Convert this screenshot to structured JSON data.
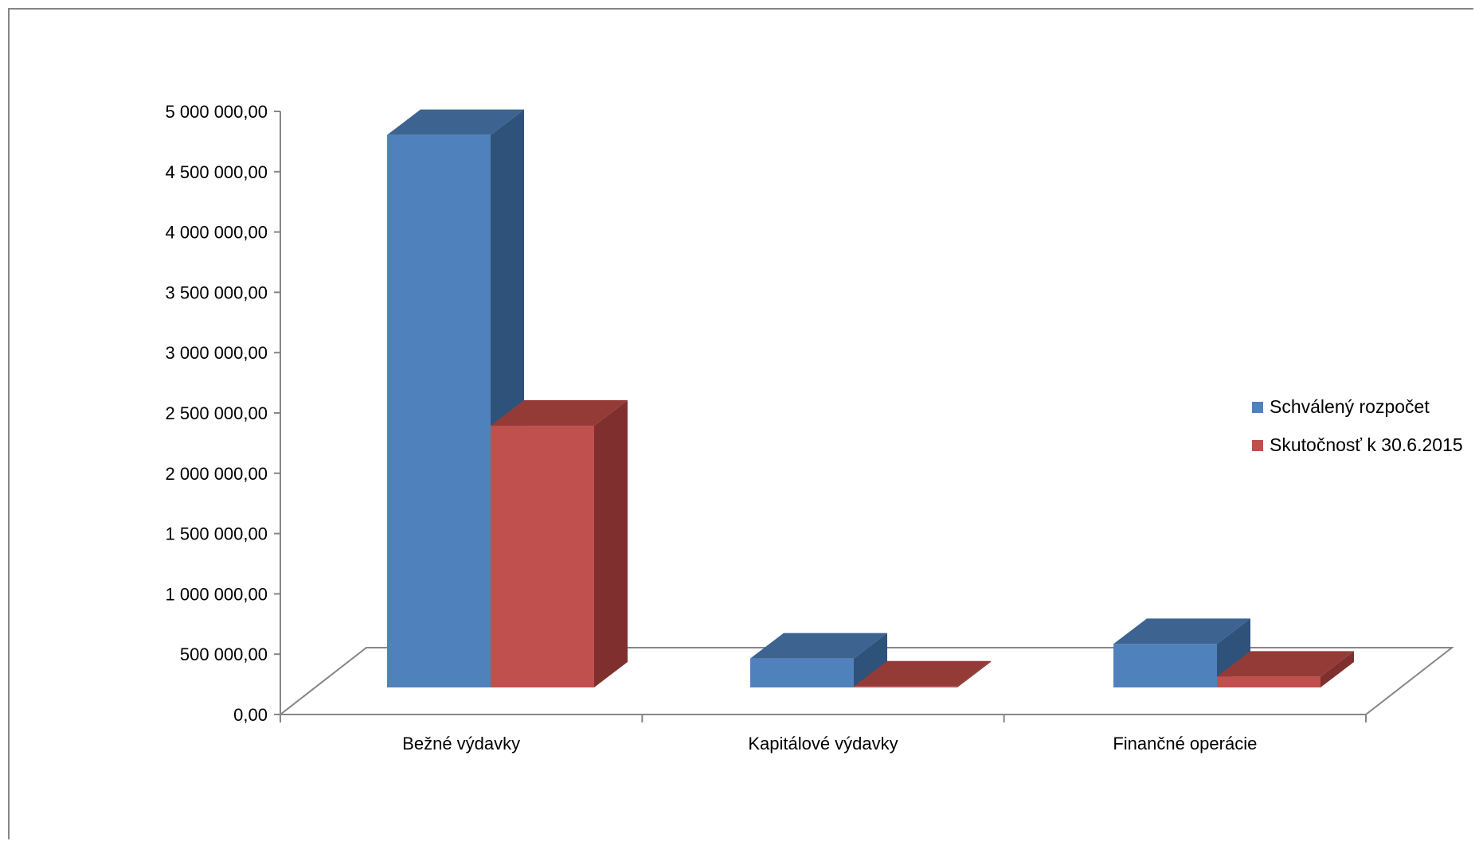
{
  "chart_data": {
    "type": "bar",
    "title": "",
    "xlabel": "",
    "ylabel": "",
    "categories": [
      "Bežné výdavky",
      "Kapitálové výdavky",
      "Finančné operácie"
    ],
    "series": [
      {
        "name": "Schválený rozpočet",
        "values": [
          4580000,
          240000,
          360000
        ],
        "color": "#4F81BD",
        "top_color": "#3D6491",
        "side_color": "#2F527B"
      },
      {
        "name": "Skutočnosť k 30.6.2015",
        "values": [
          2170000,
          8000,
          90000
        ],
        "color": "#C0504D",
        "top_color": "#943B38",
        "side_color": "#7F302E"
      }
    ],
    "ylim": [
      0,
      5000000
    ],
    "y_ticks": [
      {
        "value": 0,
        "label": "0,00"
      },
      {
        "value": 500000,
        "label": "500 000,00"
      },
      {
        "value": 1000000,
        "label": "1 000 000,00"
      },
      {
        "value": 1500000,
        "label": "1 500 000,00"
      },
      {
        "value": 2000000,
        "label": "2 000 000,00"
      },
      {
        "value": 2500000,
        "label": "2 500 000,00"
      },
      {
        "value": 3000000,
        "label": "3 000 000,00"
      },
      {
        "value": 3500000,
        "label": "3 500 000,00"
      },
      {
        "value": 4000000,
        "label": "4 000 000,00"
      },
      {
        "value": 4500000,
        "label": "4 500 000,00"
      },
      {
        "value": 5000000,
        "label": "5 000 000,00"
      }
    ],
    "grid": false,
    "legend_position": "right"
  }
}
